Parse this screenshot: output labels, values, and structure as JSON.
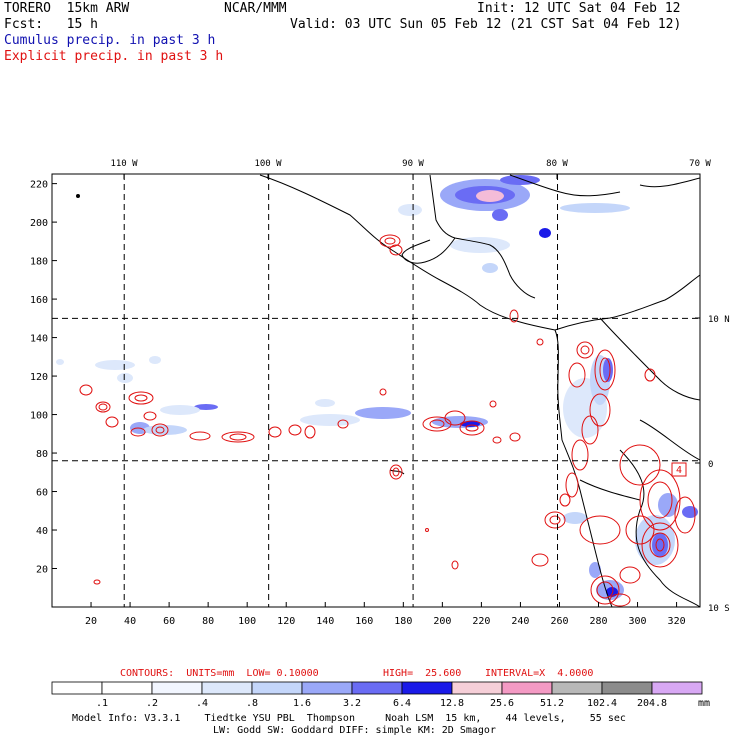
{
  "header": {
    "model": "TORERO  15km ARW",
    "center": "NCAR/MMM",
    "init": "Init: 12 UTC Sat 04 Feb 12",
    "fcst": "Fcst:   15 h",
    "valid": "Valid: 03 UTC Sun 05 Feb 12 (21 CST Sat 04 Feb 12)",
    "line1": "Cumulus precip. in past 3 h",
    "line2": "Explicit precip. in past 3 h"
  },
  "colors": {
    "cumulus": "#1010b0",
    "explicit": "#e01010",
    "coast": "#000000"
  },
  "axes": {
    "lon_labels": [
      "110 W",
      "100 W",
      "90 W",
      "80 W",
      "70 W"
    ],
    "lat_labels": [
      "10 N",
      "0",
      "10 S"
    ],
    "y_ticks": [
      "220",
      "200",
      "180",
      "160",
      "140",
      "120",
      "100",
      "80",
      "60",
      "40",
      "20"
    ],
    "x_ticks": [
      "20",
      "40",
      "60",
      "80",
      "100",
      "120",
      "140",
      "160",
      "180",
      "200",
      "220",
      "240",
      "260",
      "280",
      "300",
      "320"
    ],
    "y_grid_values": [
      20,
      40,
      60,
      80,
      100,
      120,
      140,
      160,
      180,
      200,
      220
    ],
    "x_grid_values": [
      20,
      40,
      60,
      80,
      100,
      120,
      140,
      160,
      180,
      200,
      220,
      240,
      260,
      280,
      300,
      320
    ],
    "x_range": [
      0,
      332
    ],
    "y_range": [
      0,
      225
    ],
    "lon_line_x": [
      37,
      111,
      185,
      259
    ],
    "lat_line_y": [
      150,
      76
    ]
  },
  "map_label": "4",
  "contours_info": {
    "units": "CONTOURS:  UNITS=mm  LOW= 0.10000",
    "high": "HIGH=  25.600",
    "interval": "INTERVAL=X  4.0000"
  },
  "colorbar": {
    "labels": [
      ".1",
      ".2",
      ".4",
      ".8",
      "1.6",
      "3.2",
      "6.4",
      "12.8",
      "25.6",
      "51.2",
      "102.4",
      "204.8"
    ],
    "unit": "mm",
    "colors": [
      "#ffffff",
      "#ffffff",
      "#f2f6ff",
      "#dde8fb",
      "#c4d6fa",
      "#9aa8f8",
      "#6a6cf4",
      "#1a1ae8",
      "#f6cfd8",
      "#f49ac4",
      "#b8b8b8",
      "#8c8c8c",
      "#d8a8f4"
    ]
  },
  "footer": {
    "line1": "Model Info: V3.3.1    Tiedtke YSU PBL  Thompson     Noah LSM  15 km,    44 levels,    55 sec",
    "line2": "LW: Godd SW: Goddard DIFF: simple KM: 2D Smagor"
  }
}
